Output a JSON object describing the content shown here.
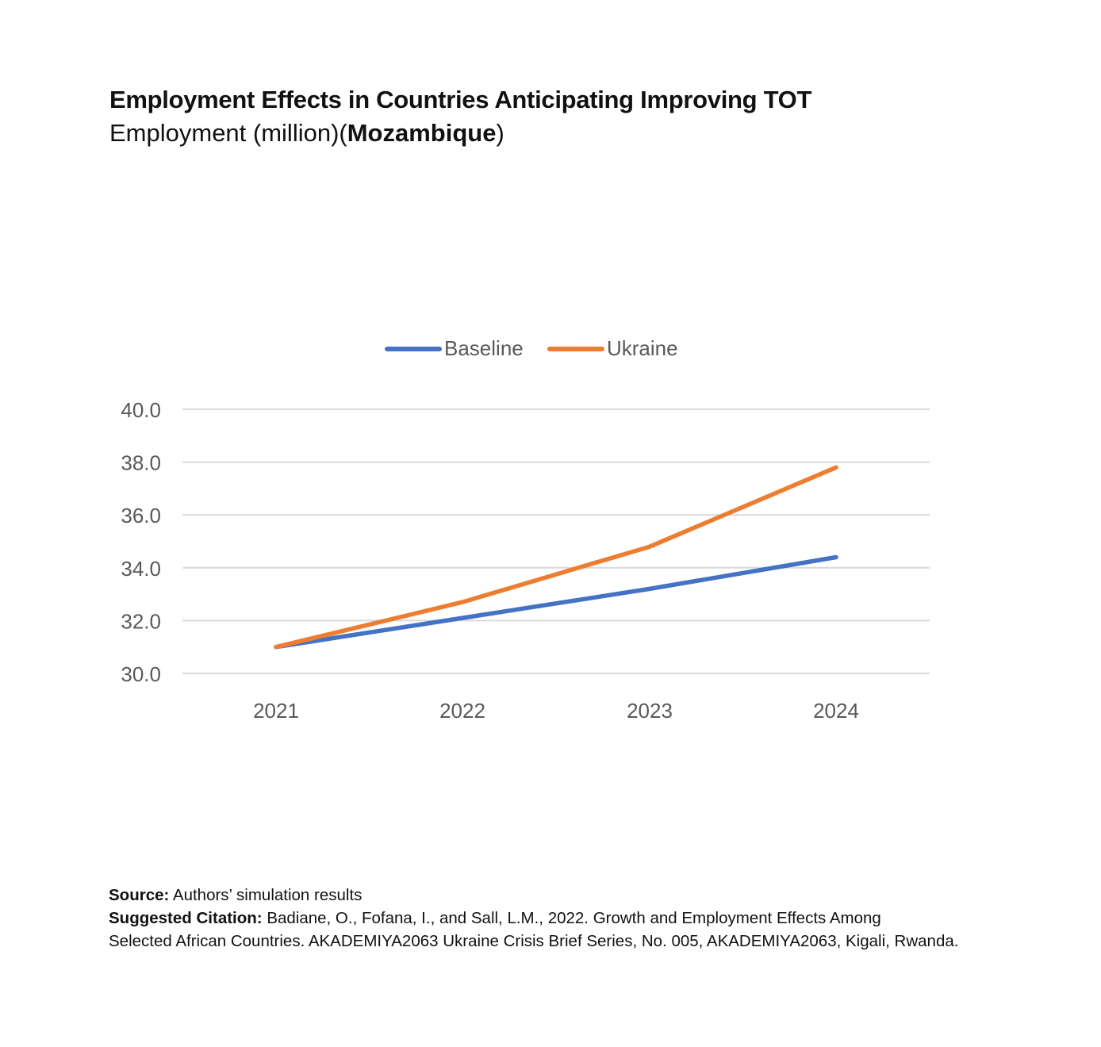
{
  "title": "Employment Effects in Countries Anticipating Improving TOT",
  "subtitle": {
    "prefix": "Employment (million)(",
    "country": "Mozambique",
    "suffix": ")"
  },
  "chart_data": {
    "type": "line",
    "title": "",
    "xlabel": "",
    "ylabel": "",
    "categories": [
      "2021",
      "2022",
      "2023",
      "2024"
    ],
    "series": [
      {
        "name": "Baseline",
        "color": "#4472c4",
        "values": [
          31.0,
          32.1,
          33.2,
          34.4
        ]
      },
      {
        "name": "Ukraine",
        "color": "#ed7d31",
        "values": [
          31.0,
          32.7,
          34.8,
          37.8
        ]
      }
    ],
    "ylim": [
      30.0,
      40.0
    ],
    "yticks": [
      "40.0",
      "38.0",
      "36.0",
      "34.0",
      "32.0",
      "30.0"
    ],
    "grid": true,
    "legend": "top-center"
  },
  "footer": {
    "source_label": "Source:",
    "source_text": "Authors’ simulation results",
    "citation_label": "Suggested Citation:",
    "citation_line1": "Badiane, O., Fofana, I., and Sall, L.M., 2022. Growth and Employment Effects Among",
    "citation_line2": "Selected African Countries. AKADEMIYA2063 Ukraine Crisis Brief Series, No. 005, AKADEMIYA2063, Kigali, Rwanda."
  }
}
